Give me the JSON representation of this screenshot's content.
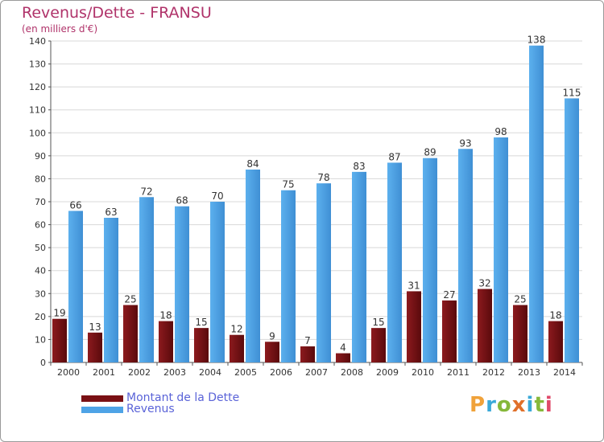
{
  "title": "Revenus/Dette - FRANSU",
  "subtitle": "(en milliers d'€)",
  "legend": {
    "debt_label": "Montant de la Dette",
    "revenue_label": "Revenus"
  },
  "logo": {
    "text": "Proxiti",
    "colors": [
      "#f0a23a",
      "#3aa9d8",
      "#86b83a",
      "#e0702a",
      "#3aa9d8",
      "#86b83a",
      "#e04a6a"
    ]
  },
  "colors": {
    "debt": "#7a1014",
    "revenue": "#4ea3e6",
    "title": "#b0336a",
    "legend_text": "#5a63d8"
  },
  "chart_data": {
    "type": "bar",
    "title": "Revenus/Dette - FRANSU",
    "ylabel": "(en milliers d'€)",
    "categories": [
      "2000",
      "2001",
      "2002",
      "2003",
      "2004",
      "2005",
      "2006",
      "2007",
      "2008",
      "2009",
      "2010",
      "2011",
      "2012",
      "2013",
      "2014"
    ],
    "series": [
      {
        "name": "Montant de la Dette",
        "values": [
          19,
          13,
          25,
          18,
          15,
          12,
          9,
          7,
          4,
          15,
          31,
          27,
          32,
          25,
          18
        ]
      },
      {
        "name": "Revenus",
        "values": [
          66,
          63,
          72,
          68,
          70,
          84,
          75,
          78,
          83,
          87,
          89,
          93,
          98,
          138,
          115
        ]
      }
    ],
    "ylim": [
      0,
      140
    ],
    "yticks": [
      0,
      10,
      20,
      30,
      40,
      50,
      60,
      70,
      80,
      90,
      100,
      110,
      120,
      130,
      140
    ],
    "grid": true,
    "legend_position": "bottom-left"
  }
}
